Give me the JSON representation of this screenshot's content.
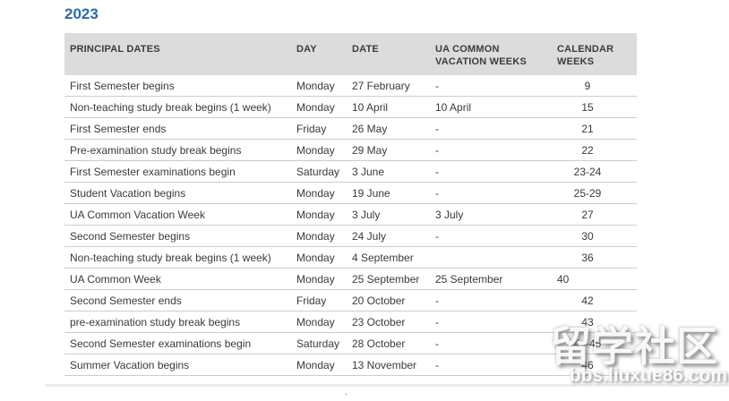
{
  "page": {
    "title": "2023"
  },
  "table": {
    "headers": {
      "principal_dates": "PRINCIPAL DATES",
      "day": "DAY",
      "date": "DATE",
      "ua_common": "UA COMMON VACATION WEEKS",
      "calendar_weeks": "CALENDAR WEEKS"
    },
    "rows": [
      {
        "name": "First Semester begins",
        "day": "Monday",
        "date": "27 February",
        "ua": "-",
        "week": "9",
        "week_align": "center"
      },
      {
        "name": "Non-teaching study break begins (1 week)",
        "day": "Monday",
        "date": "10 April",
        "ua": "10 April",
        "week": "15",
        "week_align": "center"
      },
      {
        "name": "First Semester ends",
        "day": "Friday",
        "date": "26 May",
        "ua": "-",
        "week": "21",
        "week_align": "center"
      },
      {
        "name": "Pre-examination study break begins",
        "day": "Monday",
        "date": "29 May",
        "ua": "-",
        "week": "22",
        "week_align": "center"
      },
      {
        "name": "First Semester examinations begin",
        "day": "Saturday",
        "date": "3 June",
        "ua": "-",
        "week": "23-24",
        "week_align": "center"
      },
      {
        "name": "Student Vacation begins",
        "day": "Monday",
        "date": "19 June",
        "ua": "-",
        "week": "25-29",
        "week_align": "center"
      },
      {
        "name": "UA Common Vacation Week",
        "day": "Monday",
        "date": "3 July",
        "ua": "3 July",
        "week": "27",
        "week_align": "center"
      },
      {
        "name": "Second Semester begins",
        "day": "Monday",
        "date": "24 July",
        "ua": "-",
        "week": "30",
        "week_align": "center"
      },
      {
        "name": "Non-teaching study break begins (1 week)",
        "day": "Monday",
        "date": "4 September",
        "ua": "",
        "week": "36",
        "week_align": "center"
      },
      {
        "name": "UA Common Week",
        "day": "Monday",
        "date": "25 September",
        "ua": "25 September",
        "week": "40",
        "week_align": "left"
      },
      {
        "name": "Second Semester ends",
        "day": "Friday",
        "date": "20 October",
        "ua": "-",
        "week": "42",
        "week_align": "center"
      },
      {
        "name": "pre-examination study break begins",
        "day": "Monday",
        "date": "23 October",
        "ua": "-",
        "week": "43",
        "week_align": "center"
      },
      {
        "name": "Second Semester examinations begin",
        "day": "Saturday",
        "date": "28 October",
        "ua": "-",
        "week": "44-45",
        "week_align": "center"
      },
      {
        "name": "Summer Vacation begins",
        "day": "Monday",
        "date": "13 November",
        "ua": "-",
        "week": "46",
        "week_align": "center"
      }
    ]
  },
  "watermark": {
    "site_name": "留学社区",
    "site_url": "bbs.liuxue86.com"
  }
}
